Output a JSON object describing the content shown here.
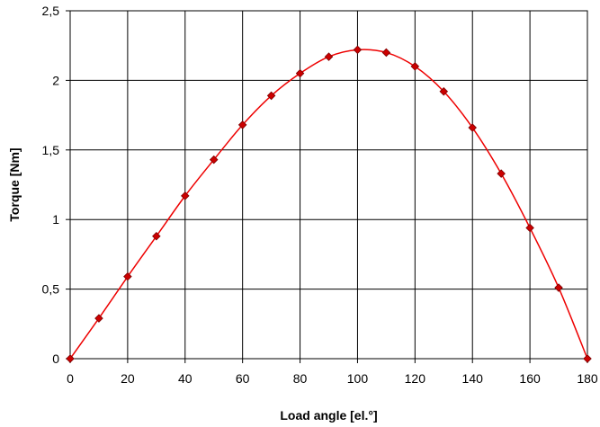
{
  "chart_data": {
    "type": "scatter",
    "title": "",
    "xlabel": "Load angle [el.°]",
    "ylabel": "Torque [Nm]",
    "xlim": [
      0,
      180
    ],
    "ylim": [
      0,
      2.5
    ],
    "grid": true,
    "x_ticks": [
      "0",
      "20",
      "40",
      "60",
      "80",
      "100",
      "120",
      "140",
      "160",
      "180"
    ],
    "y_ticks": [
      "0",
      "0,5",
      "1",
      "1,5",
      "2",
      "2,5"
    ],
    "series": [
      {
        "name": "",
        "color": "#ee0000",
        "marker_color": "#cc0000",
        "marker_stroke": "#7a0000",
        "marker": "diamond",
        "smooth_line": true,
        "x": [
          0,
          10,
          20,
          30,
          40,
          50,
          60,
          70,
          80,
          90,
          100,
          110,
          120,
          130,
          140,
          150,
          160,
          170,
          180
        ],
        "y": [
          0,
          0.29,
          0.59,
          0.88,
          1.17,
          1.43,
          1.68,
          1.89,
          2.05,
          2.17,
          2.22,
          2.2,
          2.1,
          1.92,
          1.66,
          1.33,
          0.94,
          0.51,
          0
        ]
      }
    ]
  }
}
